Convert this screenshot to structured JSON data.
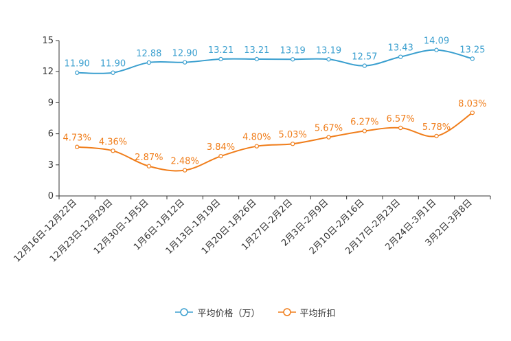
{
  "chart_data": {
    "type": "line",
    "title": "",
    "xlabel": "",
    "ylabel": "",
    "ylim": [
      0,
      15
    ],
    "yticks": [
      0,
      3,
      6,
      9,
      12,
      15
    ],
    "grid": false,
    "legend_position": "bottom-center",
    "categories": [
      "12月16日-12月22日",
      "12月23日-12月29日",
      "12月30日-1月5日",
      "1月6日-1月12日",
      "1月13日-1月19日",
      "1月20日-1月26日",
      "1月27日-2月2日",
      "2月3日-2月9日",
      "2月10日-2月16日",
      "2月17日-2月23日",
      "2月24日-3月1日",
      "3月2日-3月8日"
    ],
    "series": [
      {
        "name": "平均价格（万）",
        "color": "#3a9fcf",
        "values": [
          11.9,
          11.9,
          12.88,
          12.9,
          13.21,
          13.21,
          13.19,
          13.19,
          12.57,
          13.43,
          14.09,
          13.25
        ],
        "labels": [
          "11.90",
          "11.90",
          "12.88",
          "12.90",
          "13.21",
          "13.21",
          "13.19",
          "13.19",
          "12.57",
          "13.43",
          "14.09",
          "13.25"
        ]
      },
      {
        "name": "平均折扣",
        "color": "#f07d1a",
        "values": [
          4.73,
          4.36,
          2.87,
          2.48,
          3.84,
          4.8,
          5.03,
          5.67,
          6.27,
          6.57,
          5.78,
          8.03
        ],
        "labels": [
          "4.73%",
          "4.36%",
          "2.87%",
          "2.48%",
          "3.84%",
          "4.80%",
          "5.03%",
          "5.67%",
          "6.27%",
          "6.57%",
          "5.78%",
          "8.03%"
        ]
      }
    ]
  }
}
